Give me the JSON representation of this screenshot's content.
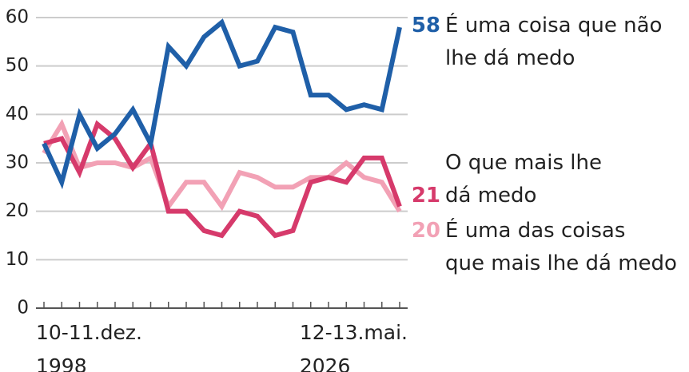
{
  "chart_data": {
    "type": "line",
    "categories": [
      "10-11.dez.\n1998",
      null,
      null,
      null,
      null,
      null,
      null,
      null,
      null,
      null,
      null,
      null,
      null,
      null,
      null,
      null,
      null,
      null,
      null,
      null,
      "12-13.mai.\n2026"
    ],
    "series": [
      {
        "name": "É uma coisa que não\nlhe dá medo",
        "color": "#1f5fa8",
        "values": [
          34,
          26,
          40,
          33,
          36,
          41,
          34,
          54,
          50,
          56,
          59,
          50,
          51,
          58,
          57,
          44,
          44,
          41,
          42,
          41,
          58
        ]
      },
      {
        "name": "O que mais lhe\ndá medo",
        "color": "#d63a6b",
        "values": [
          34,
          35,
          28,
          38,
          35,
          29,
          34,
          20,
          20,
          16,
          15,
          20,
          19,
          15,
          16,
          26,
          27,
          26,
          31,
          31,
          21
        ]
      },
      {
        "name": "É uma das coisas\nque mais lhe dá medo",
        "color": "#f2a1b5",
        "values": [
          32,
          38,
          29,
          30,
          30,
          29,
          31,
          21,
          26,
          26,
          21,
          28,
          27,
          25,
          25,
          27,
          27,
          30,
          27,
          26,
          20
        ]
      }
    ],
    "ylim": [
      0,
      60
    ],
    "yticks": [
      0,
      10,
      20,
      30,
      40,
      50,
      60
    ],
    "grid": true
  }
}
